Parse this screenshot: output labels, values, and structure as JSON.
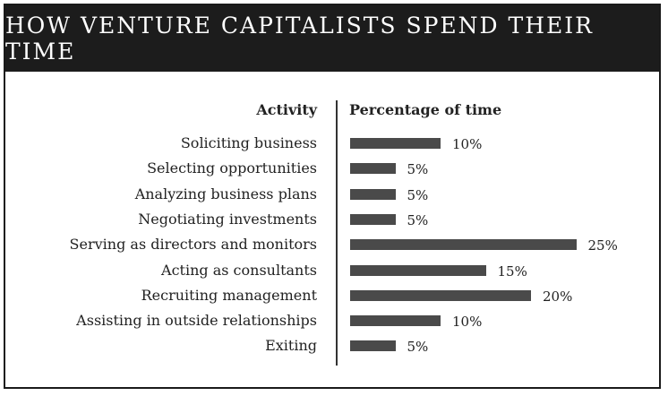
{
  "chart_data": {
    "type": "bar",
    "title": "HOW VENTURE CAPITALISTS SPEND THEIR TIME",
    "category_header": "Activity",
    "value_header": "Percentage of time",
    "categories": [
      "Soliciting business",
      "Selecting opportunities",
      "Analyzing business plans",
      "Negotiating investments",
      "Serving as directors and monitors",
      "Acting as consultants",
      "Recruiting management",
      "Assisting in outside relationships",
      "Exiting"
    ],
    "values": [
      10,
      5,
      5,
      5,
      25,
      15,
      20,
      10,
      5
    ],
    "value_labels": [
      "10%",
      "5%",
      "5%",
      "5%",
      "25%",
      "15%",
      "20%",
      "10%",
      "5%"
    ],
    "orientation": "horizontal",
    "bar_color": "#4a4a4a",
    "header_color": "#1c1c1c",
    "xlim": [
      0,
      25
    ],
    "grid": false
  }
}
